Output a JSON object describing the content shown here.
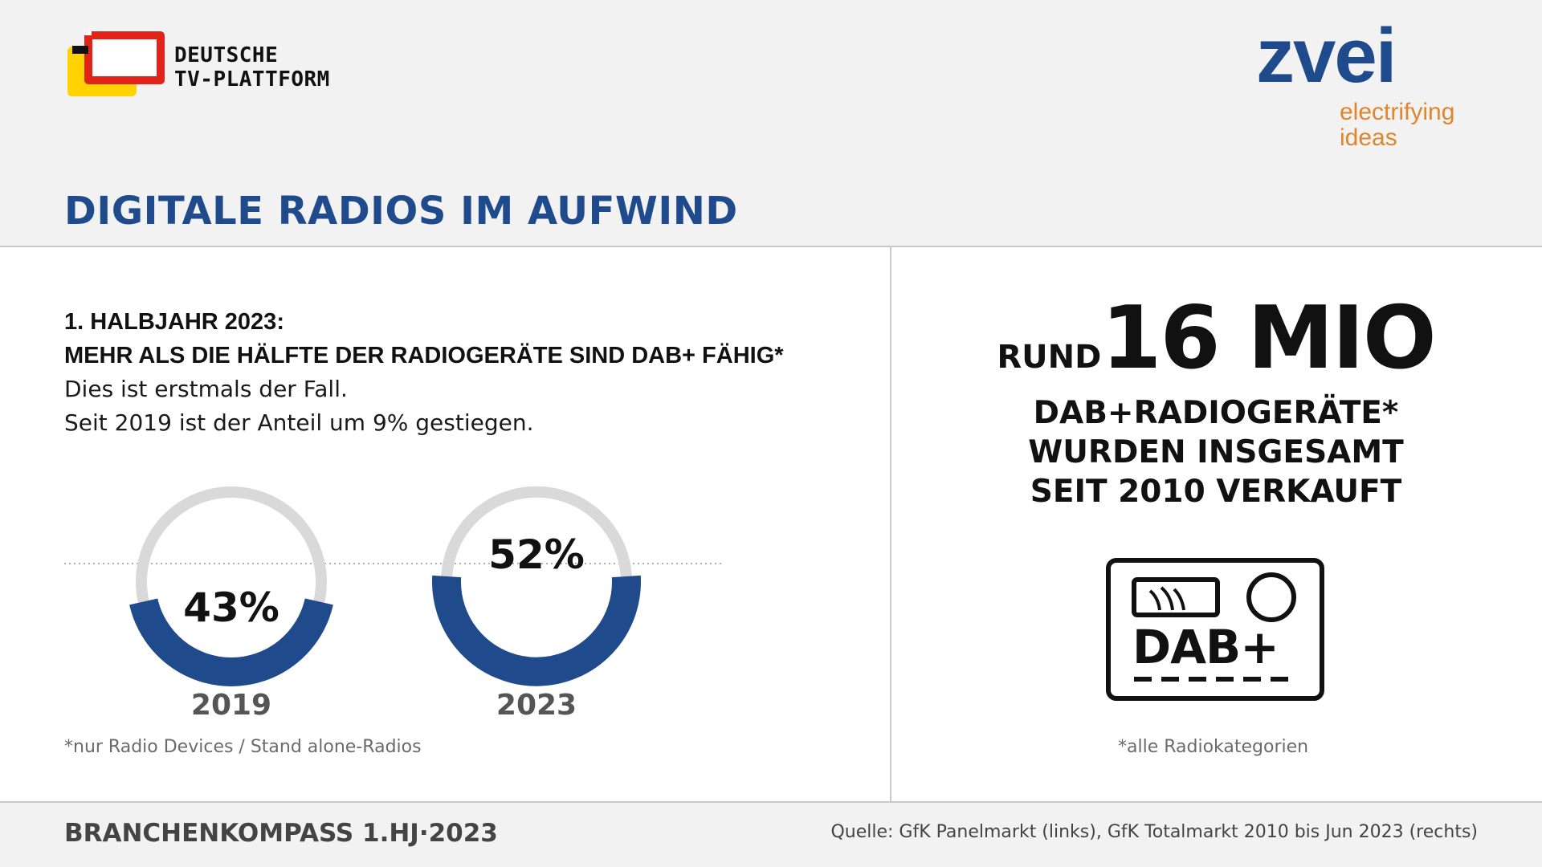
{
  "header": {
    "logo_left": {
      "line1": "DEUTSCHE",
      "line2": "TV-PLATTFORM"
    },
    "logo_right": {
      "word": "zvei",
      "tagline1": "electrifying",
      "tagline2": "ideas"
    },
    "title": "DIGITALE RADIOS IM AUFWIND"
  },
  "colors": {
    "accent_blue": "#1f4a8c",
    "ring_grey": "#d9d9d9",
    "zvei_orange": "#e0852b"
  },
  "left": {
    "heading1": "1. HALBJAHR 2023:",
    "heading2": "MEHR ALS DIE HÄLFTE DER RADIOGERÄTE SIND DAB+ FÄHIG*",
    "body1": "Dies ist erstmals der Fall.",
    "body2": "Seit 2019 ist der Anteil um 9% gestiegen.",
    "footnote": "*nur Radio Devices / Stand alone-Radios"
  },
  "chart_data": {
    "type": "pie",
    "categories": [
      "2019",
      "2023"
    ],
    "values": [
      43,
      52
    ],
    "value_labels": [
      "43%",
      "52%"
    ]
  },
  "right": {
    "prefix": "RUND",
    "value": "16 MIO",
    "line1": "DAB+RADIOGERÄTE*",
    "line2": "WURDEN INSGESAMT",
    "line3": "SEIT 2010 VERKAUFT",
    "icon_label": "DAB+",
    "icon_name": "dab-radio-icon",
    "footnote": "*alle Radiokategorien"
  },
  "footer": {
    "left": "BRANCHENKOMPASS 1.HJ·2023",
    "right": "Quelle: GfK Panelmarkt (links), GfK Totalmarkt 2010 bis Jun 2023 (rechts)"
  }
}
